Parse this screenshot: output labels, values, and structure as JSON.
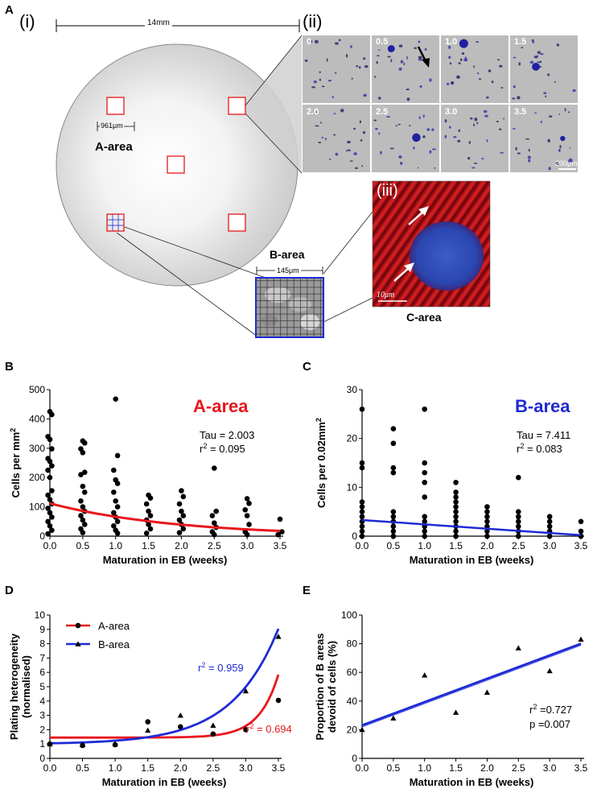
{
  "panel_a": {
    "letter": "A",
    "sub_i": "(i)",
    "sub_ii": "(ii)",
    "sub_iii": "(iii)",
    "scale_14": "14mm",
    "scale_961": "961μm",
    "scale_145": "145μm",
    "scale_200": "200μm",
    "scale_10": "10μm",
    "a_area_label": "A-area",
    "b_area_label": "B-area",
    "c_area_label": "C-area",
    "thumb_labels": [
      "0",
      "0.5",
      "1.0",
      "1.5",
      "2.0",
      "2.5",
      "3.0",
      "3.5"
    ]
  },
  "chart_data": [
    {
      "id": "B",
      "type": "scatter",
      "panel_letter": "B",
      "area_title": "A-area",
      "title_color": "#e8171c",
      "fit_color": "#e8171c",
      "xlabel": "Maturation in EB (weeks)",
      "ylabel": "Cells per  mm²",
      "xlim": [
        0,
        3.5
      ],
      "ylim": [
        0,
        500
      ],
      "xticks": [
        "0.0",
        "0.5",
        "1.0",
        "1.5",
        "2.0",
        "2.5",
        "3.0",
        "3.5"
      ],
      "yticks": [
        "0",
        "100",
        "200",
        "300",
        "400",
        "500"
      ],
      "stat1": "Tau = 2.003",
      "stat2": "r² = 0.095",
      "points": [
        [
          0,
          425
        ],
        [
          0,
          415
        ],
        [
          0,
          340
        ],
        [
          0,
          330
        ],
        [
          0,
          298
        ],
        [
          0,
          265
        ],
        [
          0,
          255
        ],
        [
          0,
          240
        ],
        [
          0,
          225
        ],
        [
          0,
          200
        ],
        [
          0,
          155
        ],
        [
          0,
          140
        ],
        [
          0,
          125
        ],
        [
          0,
          110
        ],
        [
          0,
          95
        ],
        [
          0,
          80
        ],
        [
          0,
          65
        ],
        [
          0,
          50
        ],
        [
          0,
          35
        ],
        [
          0,
          20
        ],
        [
          0,
          8
        ],
        [
          0.5,
          325
        ],
        [
          0.5,
          318
        ],
        [
          0.5,
          298
        ],
        [
          0.5,
          285
        ],
        [
          0.5,
          218
        ],
        [
          0.5,
          210
        ],
        [
          0.5,
          170
        ],
        [
          0.5,
          150
        ],
        [
          0.5,
          120
        ],
        [
          0.5,
          100
        ],
        [
          0.5,
          85
        ],
        [
          0.5,
          70
        ],
        [
          0.5,
          55
        ],
        [
          0.5,
          40
        ],
        [
          0.5,
          25
        ],
        [
          0.5,
          12
        ],
        [
          1,
          468
        ],
        [
          1,
          275
        ],
        [
          1,
          225
        ],
        [
          1,
          192
        ],
        [
          1,
          180
        ],
        [
          1,
          150
        ],
        [
          1,
          120
        ],
        [
          1,
          100
        ],
        [
          1,
          80
        ],
        [
          1,
          65
        ],
        [
          1,
          50
        ],
        [
          1,
          35
        ],
        [
          1,
          20
        ],
        [
          1,
          10
        ],
        [
          1.5,
          140
        ],
        [
          1.5,
          130
        ],
        [
          1.5,
          110
        ],
        [
          1.5,
          85
        ],
        [
          1.5,
          70
        ],
        [
          1.5,
          55
        ],
        [
          1.5,
          40
        ],
        [
          1.5,
          25
        ],
        [
          1.5,
          10
        ],
        [
          2,
          155
        ],
        [
          2,
          135
        ],
        [
          2,
          110
        ],
        [
          2,
          85
        ],
        [
          2,
          70
        ],
        [
          2,
          55
        ],
        [
          2,
          40
        ],
        [
          2,
          25
        ],
        [
          2,
          12
        ],
        [
          2.5,
          232
        ],
        [
          2.5,
          85
        ],
        [
          2.5,
          70
        ],
        [
          2.5,
          45
        ],
        [
          2.5,
          30
        ],
        [
          2.5,
          15
        ],
        [
          2.5,
          5
        ],
        [
          3,
          128
        ],
        [
          3,
          112
        ],
        [
          3,
          90
        ],
        [
          3,
          70
        ],
        [
          3,
          40
        ],
        [
          3,
          15
        ],
        [
          3,
          5
        ],
        [
          3.5,
          58
        ],
        [
          3.5,
          15
        ],
        [
          3.5,
          5
        ]
      ],
      "fit": {
        "a": 112,
        "tau": 2.003
      }
    },
    {
      "id": "C",
      "type": "scatter",
      "panel_letter": "C",
      "area_title": "B-area",
      "title_color": "#1f2bd6",
      "fit_color": "#1f2bd6",
      "xlabel": "Maturation in EB (weeks)",
      "ylabel": "Cells per 0.02mm²",
      "xlim": [
        0,
        3.5
      ],
      "ylim": [
        0,
        30
      ],
      "xticks": [
        "0.0",
        "0.5",
        "1.0",
        "1.5",
        "2.0",
        "2.5",
        "3.0",
        "3.5"
      ],
      "yticks": [
        "0",
        "10",
        "20",
        "30"
      ],
      "stat1": "Tau = 7.411",
      "stat2": "r² = 0.083",
      "points": [
        [
          0,
          26
        ],
        [
          0,
          15
        ],
        [
          0,
          14
        ],
        [
          0,
          7
        ],
        [
          0,
          6
        ],
        [
          0,
          5
        ],
        [
          0,
          4
        ],
        [
          0,
          3
        ],
        [
          0,
          2
        ],
        [
          0,
          1
        ],
        [
          0,
          0
        ],
        [
          0.5,
          22
        ],
        [
          0.5,
          19
        ],
        [
          0.5,
          14
        ],
        [
          0.5,
          13
        ],
        [
          0.5,
          5
        ],
        [
          0.5,
          4
        ],
        [
          0.5,
          3
        ],
        [
          0.5,
          2
        ],
        [
          0.5,
          1
        ],
        [
          0.5,
          0
        ],
        [
          1,
          26
        ],
        [
          1,
          15
        ],
        [
          1,
          13
        ],
        [
          1,
          11
        ],
        [
          1,
          8
        ],
        [
          1,
          4
        ],
        [
          1,
          3
        ],
        [
          1,
          2
        ],
        [
          1,
          1
        ],
        [
          1,
          0
        ],
        [
          1.5,
          11
        ],
        [
          1.5,
          9
        ],
        [
          1.5,
          8
        ],
        [
          1.5,
          7
        ],
        [
          1.5,
          6
        ],
        [
          1.5,
          5
        ],
        [
          1.5,
          4
        ],
        [
          1.5,
          3
        ],
        [
          1.5,
          2
        ],
        [
          1.5,
          1
        ],
        [
          1.5,
          0
        ],
        [
          2,
          6
        ],
        [
          2,
          5
        ],
        [
          2,
          4
        ],
        [
          2,
          3
        ],
        [
          2,
          2
        ],
        [
          2,
          1
        ],
        [
          2,
          0
        ],
        [
          2.5,
          12
        ],
        [
          2.5,
          5
        ],
        [
          2.5,
          4
        ],
        [
          2.5,
          3
        ],
        [
          2.5,
          2
        ],
        [
          2.5,
          1
        ],
        [
          2.5,
          0
        ],
        [
          3,
          4
        ],
        [
          3,
          3
        ],
        [
          3,
          2
        ],
        [
          3,
          1
        ],
        [
          3,
          0
        ],
        [
          3.5,
          3
        ],
        [
          3.5,
          1
        ],
        [
          3.5,
          0
        ]
      ],
      "fit": {
        "a": 3.3,
        "tau": 7.411,
        "linear": [
          [
            0,
            3.3
          ],
          [
            3.5,
            0.2
          ]
        ]
      }
    },
    {
      "id": "D",
      "type": "line",
      "panel_letter": "D",
      "xlabel": "Maturation in EB (weeks)",
      "ylabel": "Plating heterogeneity (normalised)",
      "ylabel_line1": "Plating heterogeneity",
      "ylabel_line2": "(normalised)",
      "xlim": [
        0,
        3.5
      ],
      "ylim": [
        0,
        10
      ],
      "xticks": [
        "0.0",
        "0.5",
        "1.0",
        "1.5",
        "2.0",
        "2.5",
        "3.0",
        "3.5"
      ],
      "yticks": [
        "0",
        "1",
        "2",
        "3",
        "4",
        "5",
        "6",
        "7",
        "8",
        "9",
        "10"
      ],
      "legend_position": "top-left",
      "series": [
        {
          "name": "A-area",
          "marker": "circle",
          "color": "#e8171c",
          "r2": "r² = 0.694",
          "x": [
            0,
            0.5,
            1.0,
            1.5,
            2.0,
            2.5,
            3.0,
            3.5
          ],
          "values": [
            1.0,
            0.9,
            0.95,
            2.55,
            2.2,
            1.7,
            2.0,
            4.05
          ]
        },
        {
          "name": "B-area",
          "marker": "triangle",
          "color": "#1f2bd6",
          "r2": "r² = 0.959",
          "x": [
            0,
            0.5,
            1.0,
            1.5,
            2.0,
            2.5,
            3.0,
            3.5
          ],
          "values": [
            1.0,
            0.95,
            1.0,
            1.95,
            3.0,
            2.3,
            4.7,
            8.5
          ]
        }
      ]
    },
    {
      "id": "E",
      "type": "scatter",
      "panel_letter": "E",
      "xlabel": "Maturation in EB (weeks)",
      "ylabel": "Proportion of B areas devoid of cells (%)",
      "ylabel_line1": "Proportion of B areas",
      "ylabel_line2": "devoid of cells (%)",
      "xlim": [
        0,
        3.5
      ],
      "ylim": [
        0,
        100
      ],
      "xticks": [
        "0.0",
        "0.5",
        "1.0",
        "1.5",
        "2.0",
        "2.5",
        "3.0",
        "3.5"
      ],
      "yticks": [
        "0",
        "20",
        "40",
        "60",
        "80",
        "100"
      ],
      "stat1": "r² =0.727",
      "stat2": "p =0.007",
      "points": [
        [
          0,
          20
        ],
        [
          0.5,
          28
        ],
        [
          1.0,
          58
        ],
        [
          1.5,
          32
        ],
        [
          2.0,
          46
        ],
        [
          2.5,
          77
        ],
        [
          3.0,
          61
        ],
        [
          3.5,
          83
        ]
      ],
      "fit_line": [
        [
          0,
          23
        ],
        [
          3.5,
          80
        ]
      ],
      "fit_color": "#1f2bd6"
    }
  ]
}
